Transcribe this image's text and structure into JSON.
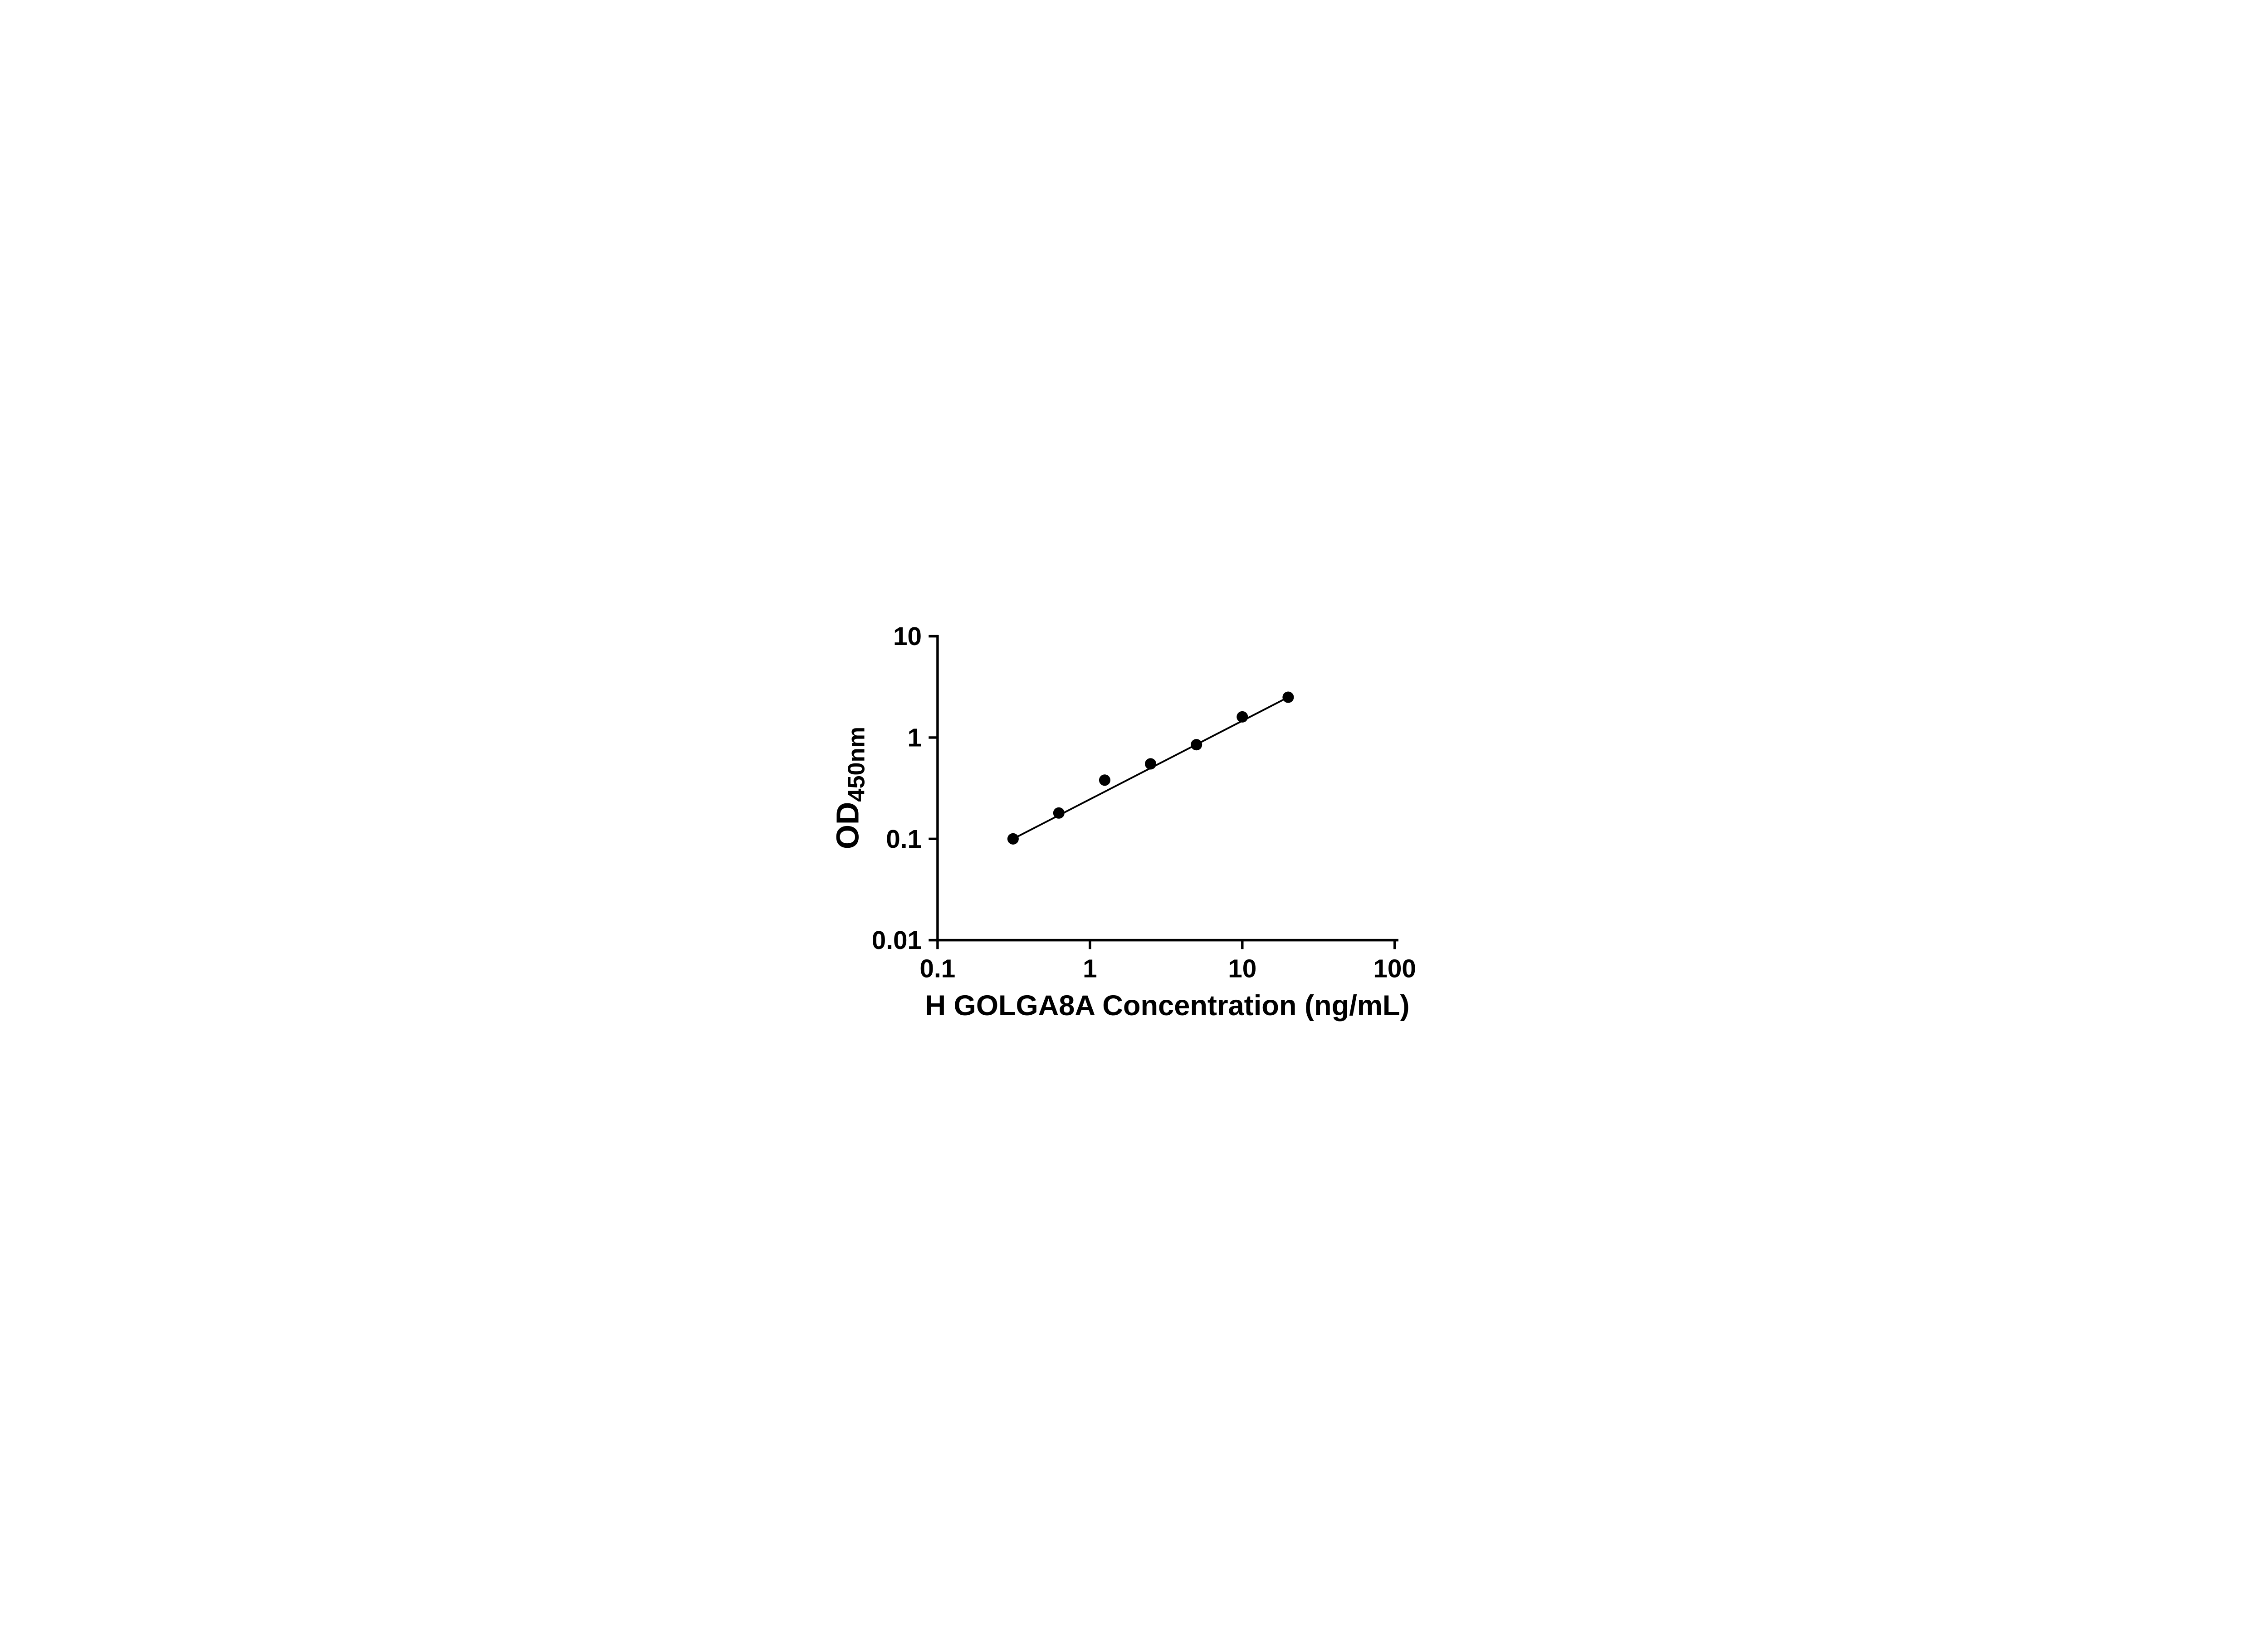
{
  "chart_data": {
    "type": "scatter",
    "title": "",
    "xlabel": "H GOLGA8A Concentration (ng/mL)",
    "ylabel_base": "OD",
    "ylabel_sub": "450nm",
    "x_scale": "log",
    "y_scale": "log",
    "xlim": [
      0.1,
      100
    ],
    "ylim": [
      0.01,
      10
    ],
    "x_ticks": [
      0.1,
      1,
      10,
      100
    ],
    "x_tick_labels": [
      "0.1",
      "1",
      "10",
      "100"
    ],
    "y_ticks": [
      0.01,
      0.1,
      1,
      10
    ],
    "y_tick_labels": [
      "0.01",
      "0.1",
      "1",
      "10"
    ],
    "grid": false,
    "legend_position": "none",
    "ink_color": "#000000",
    "background_color": "#ffffff",
    "series": [
      {
        "marker": "filled-circle",
        "line": "straight-fit-through-endpoints",
        "x": [
          0.313,
          0.625,
          1.25,
          2.5,
          5,
          10,
          20
        ],
        "y": [
          0.1,
          0.18,
          0.38,
          0.55,
          0.85,
          1.6,
          2.5
        ]
      }
    ]
  }
}
